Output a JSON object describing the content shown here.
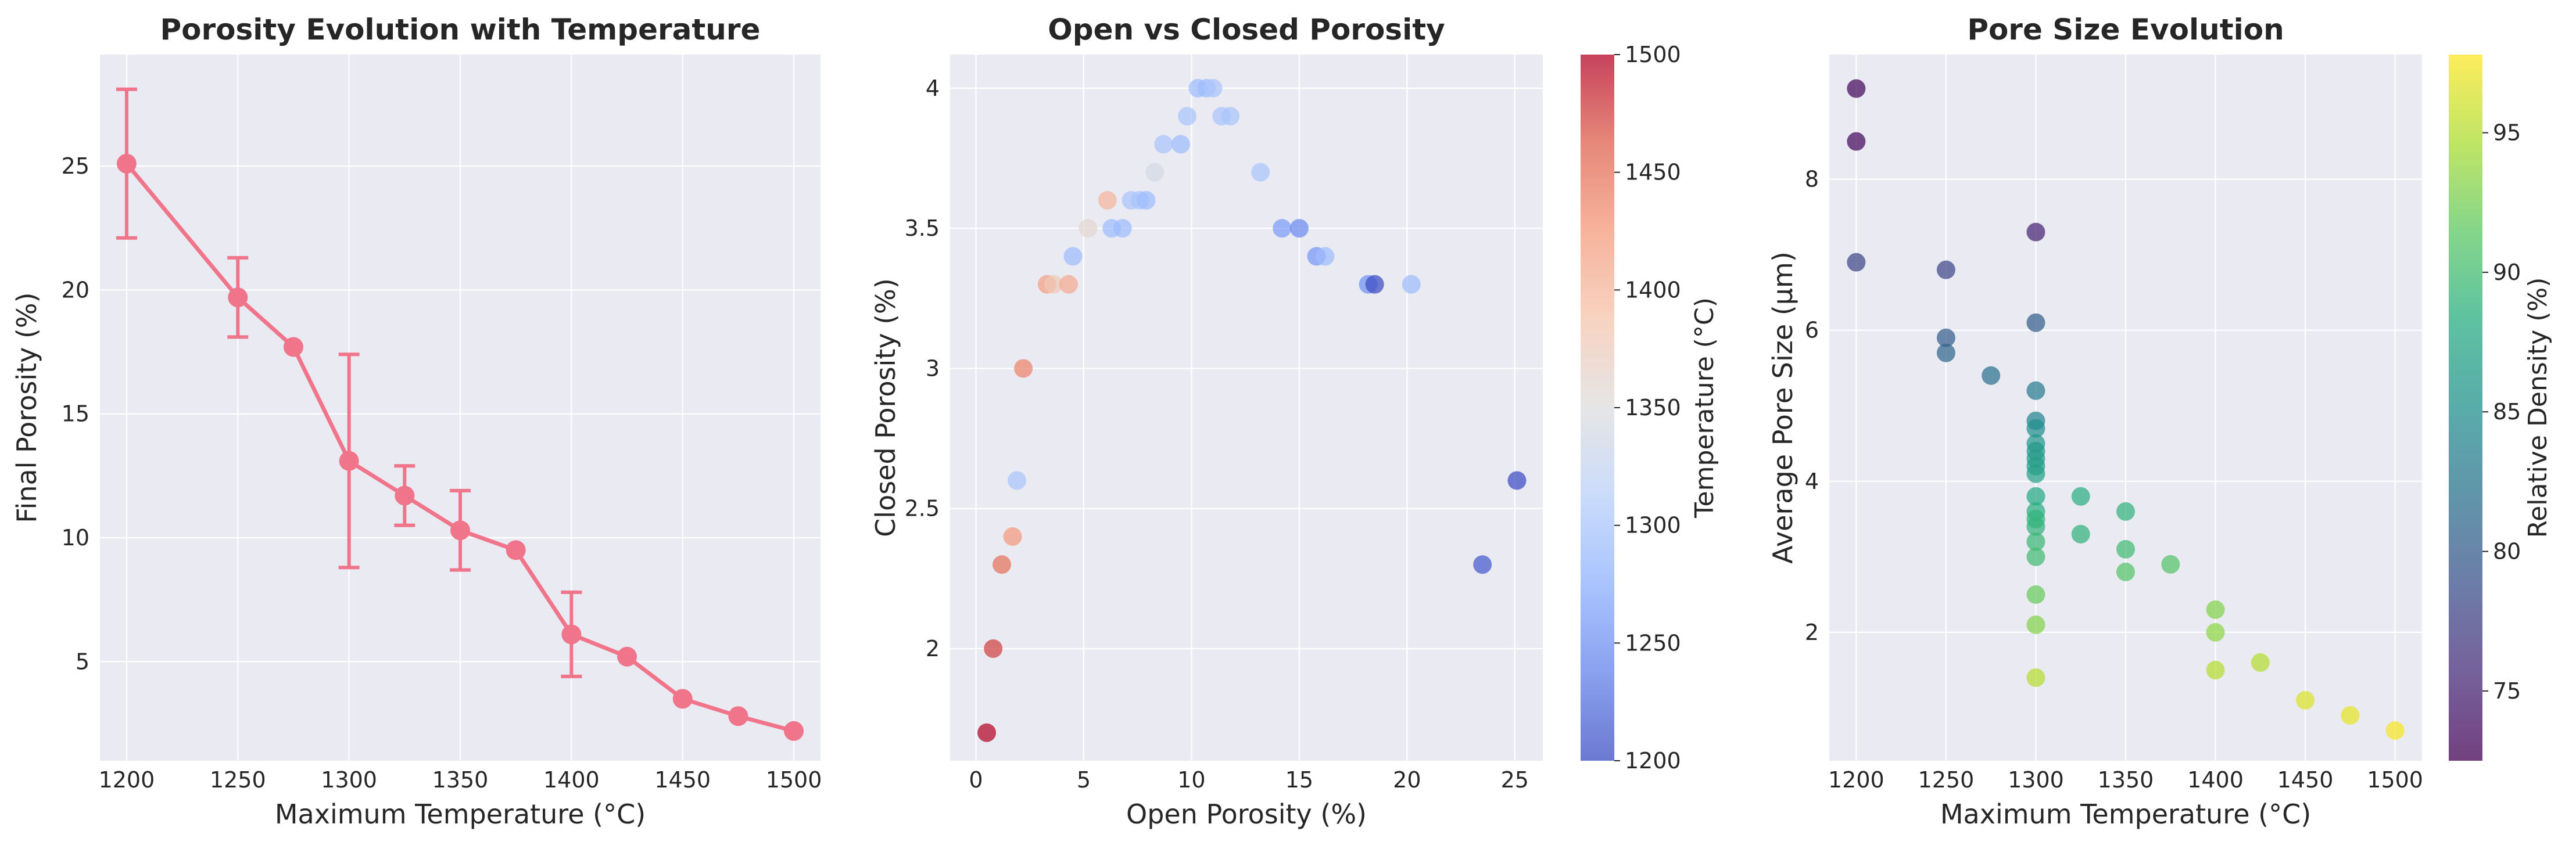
{
  "chart_data": [
    {
      "type": "line",
      "title": "Porosity Evolution with Temperature",
      "xlabel": "Maximum Temperature (°C)",
      "ylabel": "Final Porosity (%)",
      "xlim": [
        1188,
        1512
      ],
      "ylim": [
        1.0,
        29.5
      ],
      "xticks": [
        1200,
        1250,
        1300,
        1350,
        1400,
        1450,
        1500
      ],
      "yticks": [
        5,
        10,
        15,
        20,
        25
      ],
      "grid": true,
      "color": "#f0758a",
      "series": [
        {
          "x": [
            1200,
            1250,
            1275,
            1300,
            1325,
            1350,
            1375,
            1400,
            1425,
            1450,
            1475,
            1500
          ],
          "y": [
            25.1,
            19.7,
            17.7,
            13.1,
            11.7,
            10.3,
            9.5,
            6.1,
            5.2,
            3.5,
            2.8,
            2.2
          ],
          "yerr_low": [
            22.1,
            18.1,
            null,
            8.8,
            10.5,
            8.7,
            null,
            4.4,
            null,
            null,
            null,
            null
          ],
          "yerr_high": [
            28.1,
            21.3,
            null,
            17.4,
            12.9,
            11.9,
            null,
            7.8,
            null,
            null,
            null,
            null
          ]
        }
      ]
    },
    {
      "type": "scatter",
      "title": "Open vs Closed Porosity",
      "xlabel": "Open Porosity (%)",
      "ylabel": "Closed Porosity (%)",
      "xlim": [
        -1.2,
        26.3
      ],
      "ylim": [
        1.6,
        4.12
      ],
      "xticks": [
        0,
        5,
        10,
        15,
        20,
        25
      ],
      "yticks": [
        2.0,
        2.5,
        3.0,
        3.5,
        4.0
      ],
      "grid": true,
      "colorbar": {
        "label": "Temperature (°C)",
        "range": [
          1200,
          1500
        ],
        "ticks": [
          1200,
          1250,
          1300,
          1350,
          1400,
          1450,
          1500
        ],
        "colormap": "coolwarm"
      },
      "points": [
        {
          "x": 0.5,
          "y": 1.7,
          "c": 1500
        },
        {
          "x": 0.8,
          "y": 2.0,
          "c": 1475
        },
        {
          "x": 1.2,
          "y": 2.3,
          "c": 1450
        },
        {
          "x": 1.7,
          "y": 2.4,
          "c": 1425
        },
        {
          "x": 1.9,
          "y": 2.6,
          "c": 1300
        },
        {
          "x": 2.2,
          "y": 3.0,
          "c": 1440
        },
        {
          "x": 3.3,
          "y": 3.3,
          "c": 1420
        },
        {
          "x": 3.6,
          "y": 3.3,
          "c": 1380
        },
        {
          "x": 4.3,
          "y": 3.3,
          "c": 1410
        },
        {
          "x": 4.5,
          "y": 3.4,
          "c": 1290
        },
        {
          "x": 5.2,
          "y": 3.5,
          "c": 1360
        },
        {
          "x": 6.1,
          "y": 3.6,
          "c": 1400
        },
        {
          "x": 6.3,
          "y": 3.5,
          "c": 1290
        },
        {
          "x": 6.8,
          "y": 3.5,
          "c": 1290
        },
        {
          "x": 7.2,
          "y": 3.6,
          "c": 1300
        },
        {
          "x": 7.6,
          "y": 3.6,
          "c": 1300
        },
        {
          "x": 7.9,
          "y": 3.6,
          "c": 1290
        },
        {
          "x": 8.3,
          "y": 3.7,
          "c": 1340
        },
        {
          "x": 8.7,
          "y": 3.8,
          "c": 1300
        },
        {
          "x": 9.5,
          "y": 3.8,
          "c": 1290
        },
        {
          "x": 9.8,
          "y": 3.9,
          "c": 1300
        },
        {
          "x": 10.3,
          "y": 4.0,
          "c": 1290
        },
        {
          "x": 10.7,
          "y": 4.0,
          "c": 1290
        },
        {
          "x": 11.0,
          "y": 4.0,
          "c": 1300
        },
        {
          "x": 11.4,
          "y": 3.9,
          "c": 1300
        },
        {
          "x": 11.8,
          "y": 3.9,
          "c": 1300
        },
        {
          "x": 13.2,
          "y": 3.7,
          "c": 1300
        },
        {
          "x": 14.2,
          "y": 3.5,
          "c": 1260
        },
        {
          "x": 15.0,
          "y": 3.5,
          "c": 1245
        },
        {
          "x": 15.8,
          "y": 3.4,
          "c": 1255
        },
        {
          "x": 16.2,
          "y": 3.4,
          "c": 1290
        },
        {
          "x": 18.2,
          "y": 3.3,
          "c": 1250
        },
        {
          "x": 18.5,
          "y": 3.3,
          "c": 1200
        },
        {
          "x": 20.2,
          "y": 3.3,
          "c": 1290
        },
        {
          "x": 23.5,
          "y": 2.3,
          "c": 1210
        },
        {
          "x": 25.1,
          "y": 2.6,
          "c": 1200
        }
      ]
    },
    {
      "type": "scatter",
      "title": "Pore Size Evolution",
      "xlabel": "Maximum Temperature (°C)",
      "ylabel": "Average Pore Size (μm)",
      "xlim": [
        1185,
        1515
      ],
      "ylim": [
        0.3,
        9.65
      ],
      "xticks": [
        1200,
        1250,
        1300,
        1350,
        1400,
        1450,
        1500
      ],
      "yticks": [
        2,
        4,
        6,
        8
      ],
      "grid": true,
      "colorbar": {
        "label": "Relative Density (%)",
        "range": [
          72.5,
          97.8
        ],
        "ticks": [
          75,
          80,
          85,
          90,
          95
        ],
        "colormap": "viridis"
      },
      "points": [
        {
          "x": 1200,
          "y": 9.2,
          "c": 73
        },
        {
          "x": 1200,
          "y": 8.5,
          "c": 73
        },
        {
          "x": 1200,
          "y": 6.9,
          "c": 78
        },
        {
          "x": 1250,
          "y": 6.8,
          "c": 78
        },
        {
          "x": 1250,
          "y": 5.9,
          "c": 80
        },
        {
          "x": 1250,
          "y": 5.7,
          "c": 81
        },
        {
          "x": 1275,
          "y": 5.4,
          "c": 82
        },
        {
          "x": 1300,
          "y": 7.3,
          "c": 75
        },
        {
          "x": 1300,
          "y": 6.1,
          "c": 80
        },
        {
          "x": 1300,
          "y": 5.2,
          "c": 83
        },
        {
          "x": 1300,
          "y": 4.8,
          "c": 84
        },
        {
          "x": 1300,
          "y": 4.7,
          "c": 85
        },
        {
          "x": 1300,
          "y": 4.5,
          "c": 86
        },
        {
          "x": 1300,
          "y": 4.4,
          "c": 86
        },
        {
          "x": 1300,
          "y": 4.3,
          "c": 86.5
        },
        {
          "x": 1300,
          "y": 4.2,
          "c": 86.5
        },
        {
          "x": 1300,
          "y": 4.1,
          "c": 87
        },
        {
          "x": 1300,
          "y": 3.8,
          "c": 88
        },
        {
          "x": 1300,
          "y": 3.6,
          "c": 88.5
        },
        {
          "x": 1300,
          "y": 3.5,
          "c": 89
        },
        {
          "x": 1300,
          "y": 3.4,
          "c": 89
        },
        {
          "x": 1300,
          "y": 3.2,
          "c": 89.5
        },
        {
          "x": 1300,
          "y": 3.0,
          "c": 90
        },
        {
          "x": 1300,
          "y": 2.5,
          "c": 92
        },
        {
          "x": 1300,
          "y": 2.1,
          "c": 93
        },
        {
          "x": 1300,
          "y": 1.4,
          "c": 95
        },
        {
          "x": 1325,
          "y": 3.8,
          "c": 88.5
        },
        {
          "x": 1325,
          "y": 3.3,
          "c": 89
        },
        {
          "x": 1350,
          "y": 3.6,
          "c": 89
        },
        {
          "x": 1350,
          "y": 3.1,
          "c": 90
        },
        {
          "x": 1350,
          "y": 2.8,
          "c": 91
        },
        {
          "x": 1375,
          "y": 2.9,
          "c": 91
        },
        {
          "x": 1400,
          "y": 2.3,
          "c": 93
        },
        {
          "x": 1400,
          "y": 2.0,
          "c": 93.5
        },
        {
          "x": 1400,
          "y": 1.5,
          "c": 95
        },
        {
          "x": 1425,
          "y": 1.6,
          "c": 95
        },
        {
          "x": 1450,
          "y": 1.1,
          "c": 96.5
        },
        {
          "x": 1475,
          "y": 0.9,
          "c": 97
        },
        {
          "x": 1500,
          "y": 0.7,
          "c": 97.5
        }
      ]
    }
  ]
}
